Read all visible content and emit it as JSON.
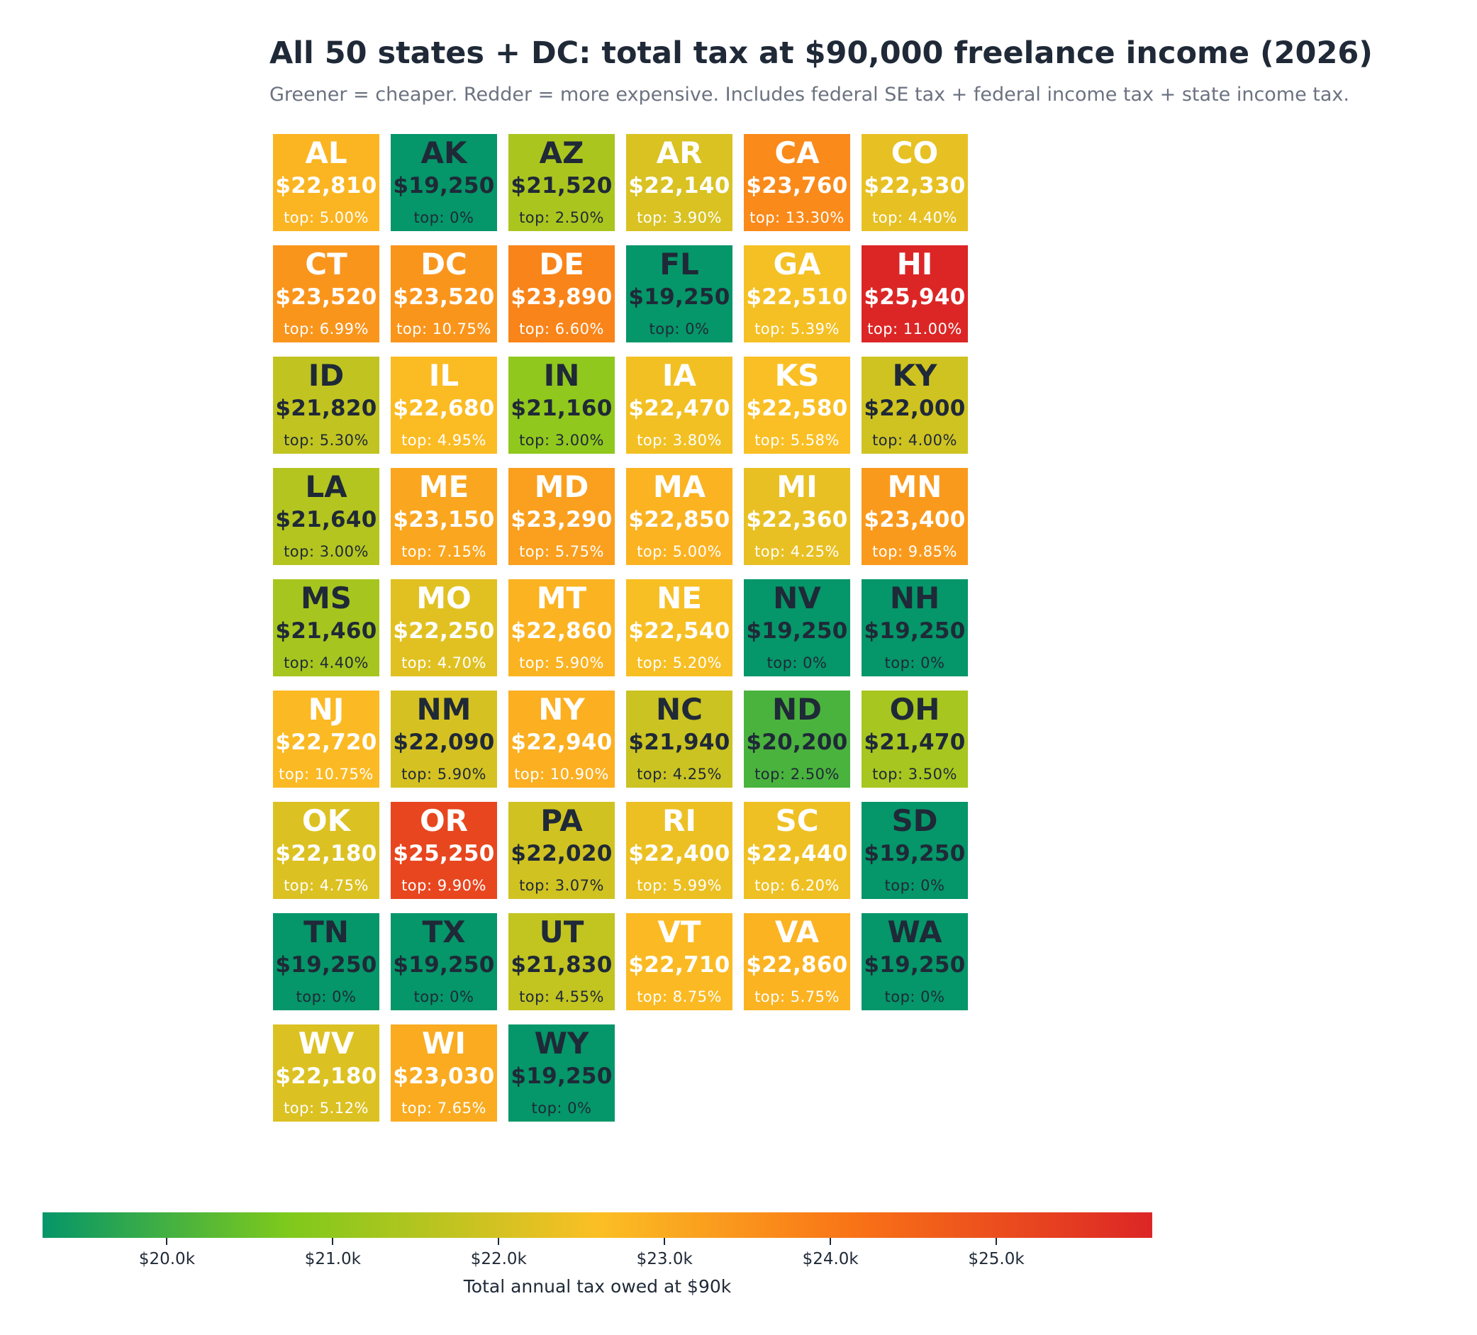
{
  "title": "All 50 states + DC: total tax at $90,000 freelance income (2026)",
  "subtitle": "Greener = cheaper. Redder = more expensive. Includes federal SE tax + federal income tax + state income tax.",
  "chart_data": {
    "type": "heatmap",
    "title": "All 50 states + DC: total tax at $90,000 freelance income (2026)",
    "subtitle": "Greener = cheaper. Redder = more expensive. Includes federal SE tax + federal income tax + state income tax.",
    "columns": 6,
    "cells": [
      {
        "state": "AL",
        "amount": "$22,810",
        "rate": "top: 5.00%",
        "value": 22810
      },
      {
        "state": "AK",
        "amount": "$19,250",
        "rate": "top: 0%",
        "value": 19250
      },
      {
        "state": "AZ",
        "amount": "$21,520",
        "rate": "top: 2.50%",
        "value": 21520
      },
      {
        "state": "AR",
        "amount": "$22,140",
        "rate": "top: 3.90%",
        "value": 22140
      },
      {
        "state": "CA",
        "amount": "$23,760",
        "rate": "top: 13.30%",
        "value": 23760
      },
      {
        "state": "CO",
        "amount": "$22,330",
        "rate": "top: 4.40%",
        "value": 22330
      },
      {
        "state": "CT",
        "amount": "$23,520",
        "rate": "top: 6.99%",
        "value": 23520
      },
      {
        "state": "DC",
        "amount": "$23,520",
        "rate": "top: 10.75%",
        "value": 23520
      },
      {
        "state": "DE",
        "amount": "$23,890",
        "rate": "top: 6.60%",
        "value": 23890
      },
      {
        "state": "FL",
        "amount": "$19,250",
        "rate": "top: 0%",
        "value": 19250
      },
      {
        "state": "GA",
        "amount": "$22,510",
        "rate": "top: 5.39%",
        "value": 22510
      },
      {
        "state": "HI",
        "amount": "$25,940",
        "rate": "top: 11.00%",
        "value": 25940
      },
      {
        "state": "ID",
        "amount": "$21,820",
        "rate": "top: 5.30%",
        "value": 21820
      },
      {
        "state": "IL",
        "amount": "$22,680",
        "rate": "top: 4.95%",
        "value": 22680
      },
      {
        "state": "IN",
        "amount": "$21,160",
        "rate": "top: 3.00%",
        "value": 21160
      },
      {
        "state": "IA",
        "amount": "$22,470",
        "rate": "top: 3.80%",
        "value": 22470
      },
      {
        "state": "KS",
        "amount": "$22,580",
        "rate": "top: 5.58%",
        "value": 22580
      },
      {
        "state": "KY",
        "amount": "$22,000",
        "rate": "top: 4.00%",
        "value": 22000
      },
      {
        "state": "LA",
        "amount": "$21,640",
        "rate": "top: 3.00%",
        "value": 21640
      },
      {
        "state": "ME",
        "amount": "$23,150",
        "rate": "top: 7.15%",
        "value": 23150
      },
      {
        "state": "MD",
        "amount": "$23,290",
        "rate": "top: 5.75%",
        "value": 23290
      },
      {
        "state": "MA",
        "amount": "$22,850",
        "rate": "top: 5.00%",
        "value": 22850
      },
      {
        "state": "MI",
        "amount": "$22,360",
        "rate": "top: 4.25%",
        "value": 22360
      },
      {
        "state": "MN",
        "amount": "$23,400",
        "rate": "top: 9.85%",
        "value": 23400
      },
      {
        "state": "MS",
        "amount": "$21,460",
        "rate": "top: 4.40%",
        "value": 21460
      },
      {
        "state": "MO",
        "amount": "$22,250",
        "rate": "top: 4.70%",
        "value": 22250
      },
      {
        "state": "MT",
        "amount": "$22,860",
        "rate": "top: 5.90%",
        "value": 22860
      },
      {
        "state": "NE",
        "amount": "$22,540",
        "rate": "top: 5.20%",
        "value": 22540
      },
      {
        "state": "NV",
        "amount": "$19,250",
        "rate": "top: 0%",
        "value": 19250
      },
      {
        "state": "NH",
        "amount": "$19,250",
        "rate": "top: 0%",
        "value": 19250
      },
      {
        "state": "NJ",
        "amount": "$22,720",
        "rate": "top: 10.75%",
        "value": 22720
      },
      {
        "state": "NM",
        "amount": "$22,090",
        "rate": "top: 5.90%",
        "value": 22090
      },
      {
        "state": "NY",
        "amount": "$22,940",
        "rate": "top: 10.90%",
        "value": 22940
      },
      {
        "state": "NC",
        "amount": "$21,940",
        "rate": "top: 4.25%",
        "value": 21940
      },
      {
        "state": "ND",
        "amount": "$20,200",
        "rate": "top: 2.50%",
        "value": 20200
      },
      {
        "state": "OH",
        "amount": "$21,470",
        "rate": "top: 3.50%",
        "value": 21470
      },
      {
        "state": "OK",
        "amount": "$22,180",
        "rate": "top: 4.75%",
        "value": 22180
      },
      {
        "state": "OR",
        "amount": "$25,250",
        "rate": "top: 9.90%",
        "value": 25250
      },
      {
        "state": "PA",
        "amount": "$22,020",
        "rate": "top: 3.07%",
        "value": 22020
      },
      {
        "state": "RI",
        "amount": "$22,400",
        "rate": "top: 5.99%",
        "value": 22400
      },
      {
        "state": "SC",
        "amount": "$22,440",
        "rate": "top: 6.20%",
        "value": 22440
      },
      {
        "state": "SD",
        "amount": "$19,250",
        "rate": "top: 0%",
        "value": 19250
      },
      {
        "state": "TN",
        "amount": "$19,250",
        "rate": "top: 0%",
        "value": 19250
      },
      {
        "state": "TX",
        "amount": "$19,250",
        "rate": "top: 0%",
        "value": 19250
      },
      {
        "state": "UT",
        "amount": "$21,830",
        "rate": "top: 4.55%",
        "value": 21830
      },
      {
        "state": "VT",
        "amount": "$22,710",
        "rate": "top: 8.75%",
        "value": 22710
      },
      {
        "state": "VA",
        "amount": "$22,860",
        "rate": "top: 5.75%",
        "value": 22860
      },
      {
        "state": "WA",
        "amount": "$19,250",
        "rate": "top: 0%",
        "value": 19250
      },
      {
        "state": "WV",
        "amount": "$22,180",
        "rate": "top: 5.12%",
        "value": 22180
      },
      {
        "state": "WI",
        "amount": "$23,030",
        "rate": "top: 7.65%",
        "value": 23030
      },
      {
        "state": "WY",
        "amount": "$19,250",
        "rate": "top: 0%",
        "value": 19250
      }
    ],
    "colorbar": {
      "label": "Total annual tax owed at $90k",
      "range": [
        19250,
        25940
      ],
      "ticks": [
        {
          "value": 20000,
          "label": "$20.0k"
        },
        {
          "value": 21000,
          "label": "$21.0k"
        },
        {
          "value": 22000,
          "label": "$22.0k"
        },
        {
          "value": 23000,
          "label": "$23.0k"
        },
        {
          "value": 24000,
          "label": "$24.0k"
        },
        {
          "value": 25000,
          "label": "$25.0k"
        }
      ],
      "colors": [
        "#059669",
        "#7ec91c",
        "#fbbf24",
        "#f97316",
        "#dc2626"
      ]
    }
  }
}
